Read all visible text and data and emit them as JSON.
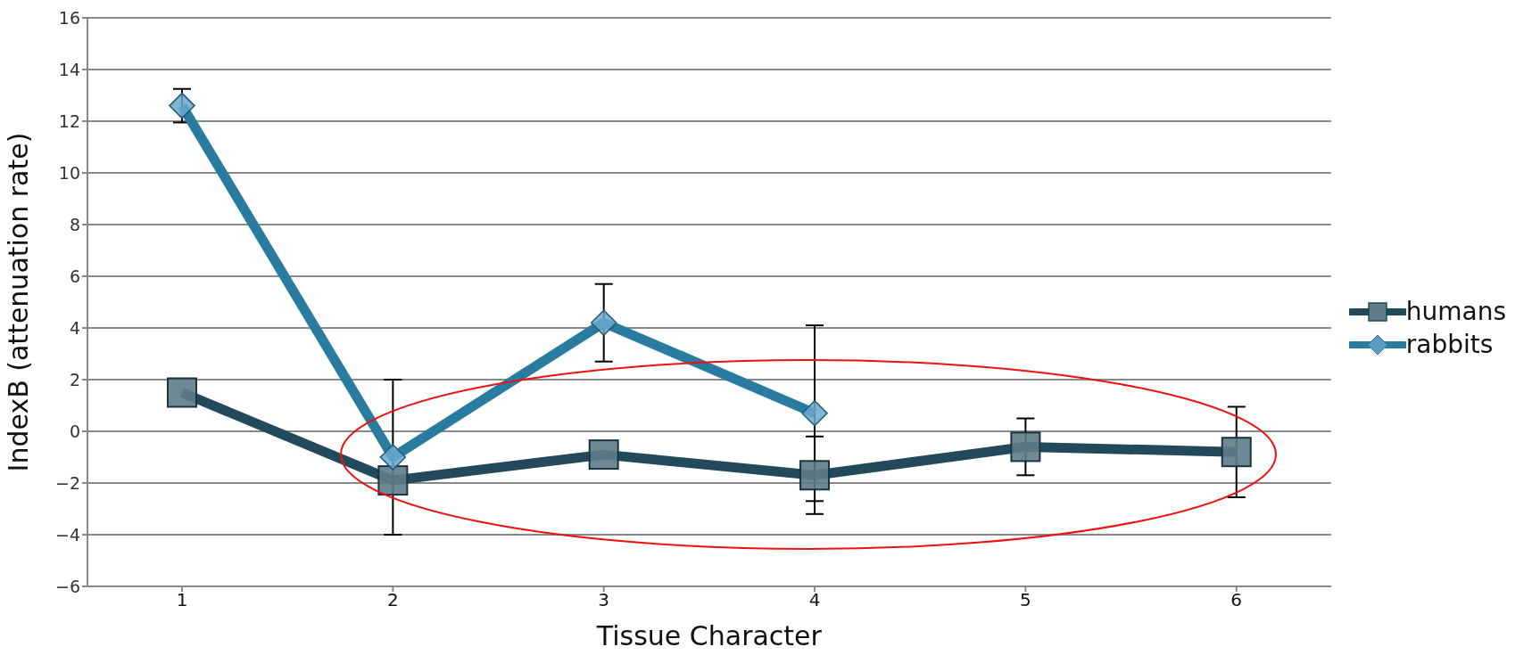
{
  "chart_data": {
    "type": "line",
    "xlabel": "Tissue Character",
    "ylabel": "IndexB (attenuation rate)",
    "categories": [
      "1",
      "2",
      "3",
      "4",
      "5",
      "6"
    ],
    "series": [
      {
        "name": "humans",
        "color": "#224a5a",
        "marker": "square",
        "values": [
          1.5,
          -1.9,
          -0.9,
          -1.7,
          -0.6,
          -0.8
        ],
        "errors": [
          null,
          null,
          null,
          1.5,
          1.1,
          1.75
        ]
      },
      {
        "name": "rabbits",
        "color": "#2a7ba0",
        "marker": "diamond",
        "values": [
          12.6,
          -1.0,
          4.2,
          0.7,
          null,
          null
        ],
        "errors": [
          0.65,
          3,
          1.5,
          3.4,
          null,
          null
        ]
      }
    ],
    "ylim": [
      -6,
      16
    ],
    "yticks": [
      -6,
      -4,
      -2,
      0,
      2,
      4,
      6,
      8,
      10,
      12,
      14,
      16
    ],
    "grid": "y",
    "legend": "right"
  }
}
